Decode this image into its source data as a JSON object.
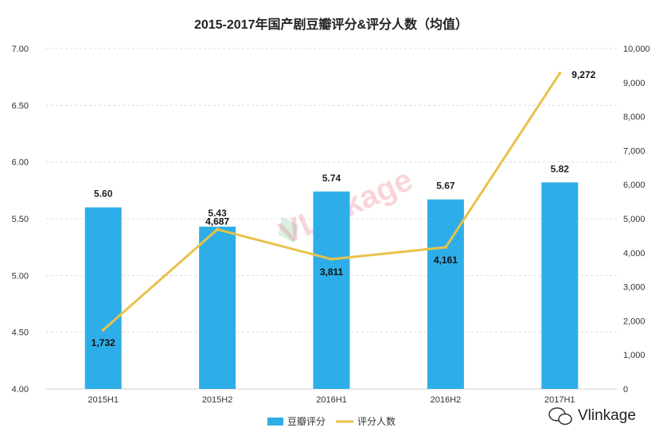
{
  "chart_data": {
    "type": "bar+line",
    "title": "2015-2017年国产剧豆瓣评分&评分人数（均值）",
    "categories": [
      "2015H1",
      "2015H2",
      "2016H1",
      "2016H2",
      "2017H1"
    ],
    "series": [
      {
        "name": "豆瓣评分",
        "type": "bar",
        "axis": "left",
        "values": [
          5.6,
          5.43,
          5.74,
          5.67,
          5.82
        ],
        "labels": [
          "5.60",
          "5.43",
          "5.74",
          "5.67",
          "5.82"
        ],
        "color": "#2eaee8"
      },
      {
        "name": "评分人数",
        "type": "line",
        "axis": "right",
        "values": [
          1732,
          4687,
          3811,
          4161,
          9272
        ],
        "labels": [
          "1,732",
          "4,687",
          "3,811",
          "4,161",
          "9,272"
        ],
        "color": "#e8c24a"
      }
    ],
    "y_left": {
      "ylim": [
        4.0,
        7.0
      ],
      "ticks": [
        "4.00",
        "4.50",
        "5.00",
        "5.50",
        "6.00",
        "6.50",
        "7.00"
      ]
    },
    "y_right": {
      "ylim": [
        0,
        10000
      ],
      "ticks": [
        "0",
        "1,000",
        "2,000",
        "3,000",
        "4,000",
        "5,000",
        "6,000",
        "7,000",
        "8,000",
        "9,000",
        "10,000"
      ]
    },
    "grid": true,
    "legend_position": "bottom"
  },
  "watermark": "VLinkage",
  "footer_brand": "Vlinkage"
}
